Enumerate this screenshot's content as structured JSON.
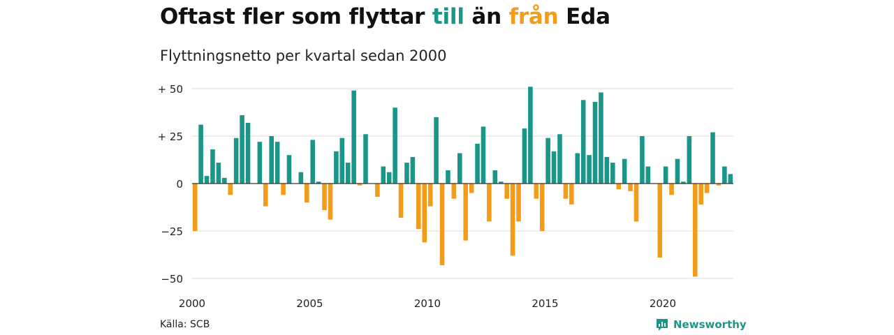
{
  "title": {
    "part1": "Oftast fler som flyttar ",
    "word_up": "till",
    "part2": " än ",
    "word_down": "från",
    "part3": " Eda"
  },
  "subtitle": "Flyttningsnetto per kvartal sedan 2000",
  "source": "Källa: SCB",
  "brand": {
    "name": "Newsworthy",
    "icon": "newsworthy-logo-icon"
  },
  "colors": {
    "positive": "#1a9688",
    "negative": "#f29c1a",
    "grid": "#dddddd",
    "zero": "#333333"
  },
  "chart_data": {
    "type": "bar",
    "x_start": "2000 Q1",
    "x_ticks": [
      "2000",
      "2005",
      "2010",
      "2015",
      "2020"
    ],
    "y_ticks": [
      {
        "value": 50,
        "label": "+ 50"
      },
      {
        "value": 25,
        "label": "+ 25"
      },
      {
        "value": 0,
        "label": "0"
      },
      {
        "value": -25,
        "label": "−25"
      },
      {
        "value": -50,
        "label": "−50"
      }
    ],
    "ylim": [
      -50,
      50
    ],
    "grid": true,
    "values": [
      -25,
      31,
      4,
      18,
      11,
      3,
      -6,
      24,
      36,
      32,
      0,
      22,
      -12,
      25,
      22,
      -6,
      15,
      0,
      6,
      -10,
      23,
      1,
      -14,
      -19,
      17,
      24,
      11,
      49,
      -1,
      26,
      0,
      -7,
      9,
      6,
      40,
      -18,
      11,
      14,
      -24,
      -31,
      -12,
      35,
      -43,
      7,
      -8,
      16,
      -30,
      -5,
      21,
      30,
      -20,
      7,
      1,
      -8,
      -38,
      -20,
      29,
      51,
      -8,
      -25,
      24,
      17,
      26,
      -8,
      -11,
      16,
      44,
      15,
      43,
      48,
      14,
      11,
      -3,
      13,
      -4,
      -20,
      25,
      9,
      0,
      -39,
      9,
      -6,
      13,
      1,
      25,
      -49,
      -11,
      -5,
      27,
      -1,
      9,
      5
    ]
  }
}
